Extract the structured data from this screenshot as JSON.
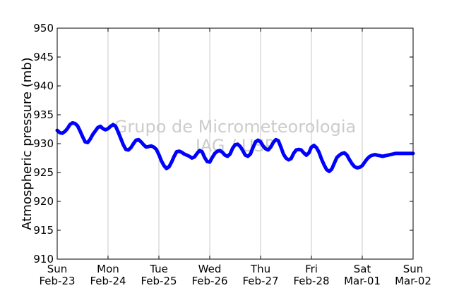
{
  "chart_data": {
    "type": "line",
    "title": "",
    "ylabel": "Atmospheric pressure (mb)",
    "xlabel": "",
    "ylim": [
      910,
      950
    ],
    "xlim_days": [
      0,
      7
    ],
    "y_ticks": [
      910,
      915,
      920,
      925,
      930,
      935,
      940,
      945,
      950
    ],
    "x_ticks": [
      {
        "day": "Sun",
        "date": "Feb-23"
      },
      {
        "day": "Mon",
        "date": "Feb-24"
      },
      {
        "day": "Tue",
        "date": "Feb-25"
      },
      {
        "day": "Wed",
        "date": "Feb-26"
      },
      {
        "day": "Thu",
        "date": "Feb-27"
      },
      {
        "day": "Fri",
        "date": "Feb-28"
      },
      {
        "day": "Sat",
        "date": "Mar-01"
      },
      {
        "day": "Sun",
        "date": "Mar-02"
      }
    ],
    "grid": "vertical",
    "series": [
      {
        "color": "#0000ff",
        "x": [
          0.0,
          0.05,
          0.1,
          0.15,
          0.2,
          0.25,
          0.3,
          0.35,
          0.4,
          0.45,
          0.5,
          0.55,
          0.6,
          0.65,
          0.7,
          0.75,
          0.8,
          0.85,
          0.9,
          0.95,
          1.0,
          1.05,
          1.1,
          1.15,
          1.2,
          1.25,
          1.3,
          1.35,
          1.4,
          1.45,
          1.5,
          1.55,
          1.6,
          1.65,
          1.7,
          1.75,
          1.8,
          1.85,
          1.9,
          1.95,
          2.0,
          2.05,
          2.1,
          2.15,
          2.2,
          2.25,
          2.3,
          2.35,
          2.4,
          2.45,
          2.5,
          2.55,
          2.6,
          2.65,
          2.7,
          2.75,
          2.8,
          2.85,
          2.9,
          2.95,
          3.0,
          3.05,
          3.1,
          3.15,
          3.2,
          3.25,
          3.3,
          3.35,
          3.4,
          3.45,
          3.5,
          3.55,
          3.6,
          3.65,
          3.7,
          3.75,
          3.8,
          3.85,
          3.9,
          3.95,
          4.0,
          4.05,
          4.1,
          4.15,
          4.2,
          4.25,
          4.3,
          4.35,
          4.4,
          4.45,
          4.5,
          4.55,
          4.6,
          4.65,
          4.7,
          4.75,
          4.8,
          4.85,
          4.9,
          4.95,
          5.0,
          5.05,
          5.1,
          5.15,
          5.2,
          5.25,
          5.3,
          5.35,
          5.4,
          5.45,
          5.5,
          5.55,
          5.6,
          5.65,
          5.7,
          5.75,
          5.8,
          5.85,
          5.9,
          5.95,
          6.0,
          6.05,
          6.1,
          6.15,
          6.2,
          6.25,
          6.3,
          6.35,
          6.4,
          6.45,
          6.5,
          6.55,
          6.6,
          6.65,
          6.7,
          6.75,
          6.8,
          6.85,
          6.9,
          6.95,
          7.0
        ],
        "y": [
          932.3,
          931.9,
          931.8,
          932.1,
          932.6,
          933.3,
          933.6,
          933.5,
          933.1,
          932.2,
          931.2,
          930.3,
          930.2,
          930.8,
          931.6,
          932.2,
          932.8,
          933.0,
          932.6,
          932.4,
          932.6,
          933.0,
          933.3,
          933.0,
          932.0,
          930.9,
          929.8,
          929.0,
          928.9,
          929.3,
          930.0,
          930.6,
          930.7,
          930.3,
          929.8,
          929.4,
          929.5,
          929.6,
          929.4,
          929.0,
          928.1,
          927.0,
          926.2,
          925.7,
          926.0,
          926.8,
          927.8,
          928.6,
          928.7,
          928.5,
          928.2,
          928.0,
          927.8,
          927.5,
          927.7,
          928.3,
          928.8,
          928.6,
          927.6,
          926.9,
          926.8,
          927.6,
          928.3,
          928.7,
          928.8,
          928.5,
          928.0,
          927.8,
          928.2,
          929.2,
          929.8,
          929.9,
          929.5,
          928.8,
          928.0,
          927.8,
          928.2,
          929.3,
          930.3,
          930.6,
          930.3,
          929.6,
          929.1,
          928.9,
          929.4,
          930.2,
          930.7,
          930.5,
          929.4,
          928.2,
          927.5,
          927.2,
          927.4,
          928.3,
          928.9,
          929.0,
          928.9,
          928.4,
          928.0,
          928.4,
          929.4,
          929.7,
          929.3,
          928.5,
          927.3,
          926.3,
          925.5,
          925.2,
          925.6,
          926.6,
          927.6,
          928.0,
          928.3,
          928.4,
          928.0,
          927.2,
          926.5,
          926.0,
          925.8,
          925.9,
          926.2,
          926.8,
          927.4,
          927.8,
          928.0,
          928.1,
          928.0,
          927.9,
          927.8,
          927.9,
          928.0,
          928.1,
          928.2,
          928.3,
          928.3,
          928.3,
          928.3,
          928.3,
          928.3,
          928.3,
          928.3
        ]
      }
    ],
    "watermark": [
      "Grupo de Micrometeorologia",
      "IAG / USP"
    ]
  }
}
